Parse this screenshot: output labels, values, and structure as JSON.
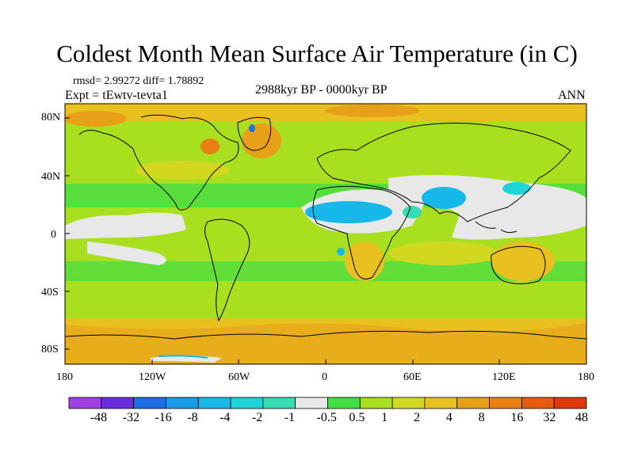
{
  "title": "Coldest Month Mean Surface Air Temperature (in C)",
  "stats": "rmsd= 2.99272 diff= 1.78892",
  "experiment": "Expt = tEwtv-tevta1",
  "period": "2988kyr BP - 0000kyr BP",
  "season": "ANN",
  "axes": {
    "y_ticks": [
      "80N",
      "40N",
      "0",
      "40S",
      "80S"
    ],
    "x_ticks": [
      "180",
      "120W",
      "60W",
      "0",
      "60E",
      "120E",
      "180"
    ]
  },
  "colorbar": {
    "colors": [
      "#a040e0",
      "#6a2ee0",
      "#1e6ee6",
      "#199be6",
      "#15b8e8",
      "#1fd4d6",
      "#35dcb4",
      "#e8e8e8",
      "#44dd44",
      "#a8e020",
      "#d2d820",
      "#e8c020",
      "#e8a018",
      "#e88014",
      "#e85a10",
      "#e03808"
    ],
    "labels": [
      "-48",
      "-32",
      "-16",
      "-8",
      "-4",
      "-2",
      "-1",
      "-0.5",
      "0.5",
      "1",
      "2",
      "4",
      "8",
      "16",
      "32",
      "48"
    ]
  },
  "legend_swatch_names": [
    "very-negative",
    "strong-negative",
    "negative-16",
    "negative-8",
    "negative-4",
    "negative-2",
    "negative-1",
    "near-zero",
    "positive-0.5",
    "positive-1",
    "positive-2",
    "positive-4",
    "positive-8",
    "positive-16",
    "positive-32",
    "positive-48"
  ]
}
